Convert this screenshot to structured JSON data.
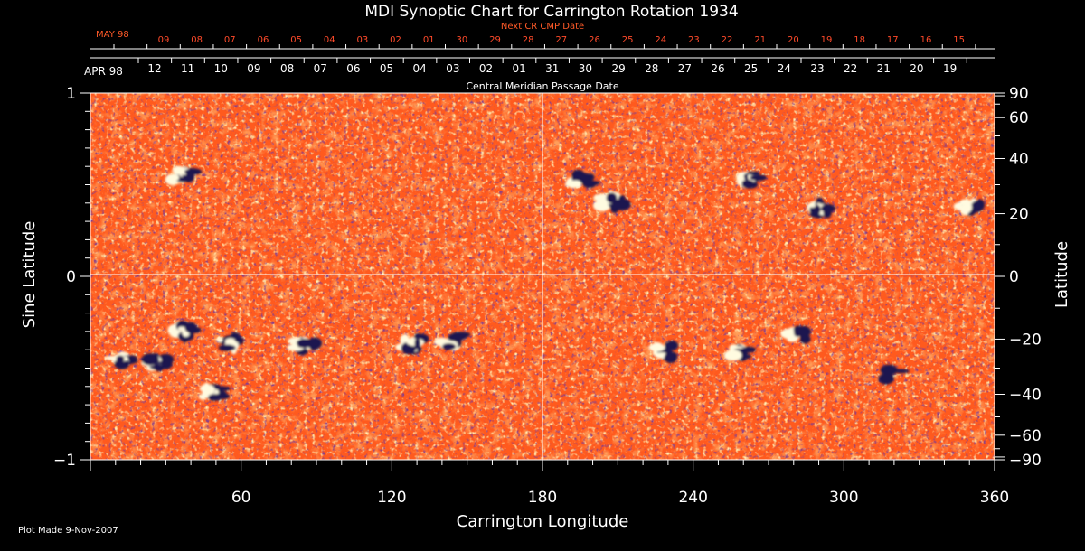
{
  "chart_data": {
    "type": "heatmap",
    "title": "MDI Synoptic Chart for Carrington Rotation 1934",
    "xlabel": "Carrington Longitude",
    "ylabel_left": "Sine Latitude",
    "ylabel_right": "Latitude",
    "xlim": [
      0,
      360
    ],
    "ylim": [
      -1,
      1
    ],
    "x_ticks": [
      60,
      120,
      180,
      240,
      300,
      360
    ],
    "x_tick_labels": [
      "60",
      "120",
      "180",
      "240",
      "300",
      "360"
    ],
    "y_left_ticks": [
      1,
      0,
      -1
    ],
    "y_left_tick_labels": [
      "1",
      "0",
      "−1"
    ],
    "y_right_ticks": [
      90,
      60,
      40,
      20,
      0,
      -20,
      -40,
      -60,
      -90
    ],
    "y_right_tick_labels": [
      "90",
      "60",
      "40",
      "20",
      "0",
      "−20",
      "−40",
      "−60",
      "−90"
    ],
    "grid_lines": {
      "longitude": 180,
      "sine_latitude": 0
    },
    "colors": {
      "background_field": "#ff5a1e",
      "positive": "#fffbe0",
      "negative": "#1a1450",
      "date_red": "#ff4a2a"
    },
    "top_axis_red": {
      "label": "Next CR CMP Date",
      "month_label": "MAY 98",
      "dates": [
        "09",
        "08",
        "07",
        "06",
        "05",
        "04",
        "03",
        "02",
        "01",
        "30",
        "29",
        "28",
        "27",
        "26",
        "25",
        "24",
        "23",
        "22",
        "21",
        "20",
        "19",
        "18",
        "17",
        "16",
        "15"
      ]
    },
    "top_axis_white": {
      "label": "Central Meridian Passage Date",
      "month_label": "APR 98",
      "dates": [
        "12",
        "11",
        "10",
        "09",
        "08",
        "07",
        "06",
        "05",
        "04",
        "03",
        "02",
        "01",
        "31",
        "30",
        "29",
        "28",
        "27",
        "26",
        "25",
        "24",
        "23",
        "22",
        "21",
        "20",
        "19"
      ]
    },
    "active_regions": [
      {
        "lon": 12,
        "sinlat": -0.45,
        "polarity": "mixed"
      },
      {
        "lon": 25,
        "sinlat": -0.48,
        "polarity": "mixed"
      },
      {
        "lon": 37,
        "sinlat": -0.3,
        "polarity": "mixed"
      },
      {
        "lon": 48,
        "sinlat": -0.63,
        "polarity": "mixed"
      },
      {
        "lon": 55,
        "sinlat": -0.37,
        "polarity": "mixed"
      },
      {
        "lon": 85,
        "sinlat": -0.38,
        "polarity": "mixed"
      },
      {
        "lon": 128,
        "sinlat": -0.37,
        "polarity": "mixed"
      },
      {
        "lon": 143,
        "sinlat": -0.35,
        "polarity": "mixed"
      },
      {
        "lon": 228,
        "sinlat": -0.41,
        "polarity": "mixed"
      },
      {
        "lon": 258,
        "sinlat": -0.41,
        "polarity": "mixed"
      },
      {
        "lon": 280,
        "sinlat": -0.32,
        "polarity": "mixed"
      },
      {
        "lon": 318,
        "sinlat": -0.53,
        "polarity": "negative"
      },
      {
        "lon": 195,
        "sinlat": 0.52,
        "polarity": "mixed"
      },
      {
        "lon": 207,
        "sinlat": 0.41,
        "polarity": "mixed"
      },
      {
        "lon": 262,
        "sinlat": 0.53,
        "polarity": "mixed"
      },
      {
        "lon": 290,
        "sinlat": 0.37,
        "polarity": "mixed"
      },
      {
        "lon": 350,
        "sinlat": 0.38,
        "polarity": "mixed"
      },
      {
        "lon": 36,
        "sinlat": 0.55,
        "polarity": "mixed"
      }
    ]
  },
  "footer": {
    "plot_made": "Plot Made  9-Nov-2007"
  }
}
